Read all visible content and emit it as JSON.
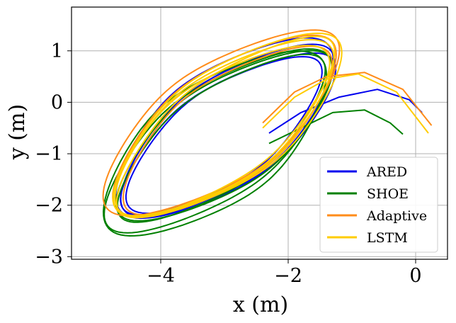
{
  "chart_data": {
    "type": "line",
    "title": "",
    "xlabel": "x (m)",
    "ylabel": "y (m)",
    "xlim": [
      -5.4,
      0.5
    ],
    "ylim": [
      -3.05,
      1.85
    ],
    "grid": true,
    "x_ticks": [
      {
        "value": -4,
        "label": "−4"
      },
      {
        "value": -2,
        "label": "−2"
      },
      {
        "value": 0,
        "label": "0"
      }
    ],
    "y_ticks": [
      {
        "value": 1,
        "label": "1"
      },
      {
        "value": 0,
        "label": "0"
      },
      {
        "value": -1,
        "label": "−1"
      },
      {
        "value": -2,
        "label": "−2"
      },
      {
        "value": -3,
        "label": "−3"
      }
    ],
    "legend_position": "lower-right",
    "series": [
      {
        "name": "ARED",
        "color": "#0000ee",
        "loops": [
          {
            "cx": -2.95,
            "cy": -0.55,
            "a": 2.25,
            "b": 0.95,
            "angle": 45
          },
          {
            "cx": -3.05,
            "cy": -0.65,
            "a": 2.1,
            "b": 0.85,
            "angle": 44
          },
          {
            "cx": -3.0,
            "cy": -0.5,
            "a": 2.3,
            "b": 1.05,
            "angle": 46
          },
          {
            "cx": -2.9,
            "cy": -0.6,
            "a": 2.15,
            "b": 0.9,
            "angle": 43
          }
        ],
        "tail": {
          "x": [
            -2.3,
            -1.8,
            -1.2,
            -0.6,
            -0.1,
            0.1
          ],
          "y": [
            -0.6,
            -0.2,
            0.1,
            0.25,
            0.05,
            -0.2
          ]
        }
      },
      {
        "name": "SHOE",
        "color": "#008000",
        "loops": [
          {
            "cx": -3.1,
            "cy": -0.75,
            "a": 2.4,
            "b": 1.0,
            "angle": 45
          },
          {
            "cx": -3.0,
            "cy": -0.65,
            "a": 2.25,
            "b": 0.95,
            "angle": 44
          },
          {
            "cx": -3.15,
            "cy": -0.8,
            "a": 2.35,
            "b": 1.1,
            "angle": 46
          },
          {
            "cx": -3.05,
            "cy": -0.7,
            "a": 2.2,
            "b": 0.88,
            "angle": 45
          }
        ],
        "tail": {
          "x": [
            -2.3,
            -1.8,
            -1.3,
            -0.8,
            -0.4,
            -0.2
          ],
          "y": [
            -0.8,
            -0.5,
            -0.2,
            -0.15,
            -0.4,
            -0.62
          ]
        }
      },
      {
        "name": "Adaptive",
        "color": "#ff8c1a",
        "loops": [
          {
            "cx": -3.0,
            "cy": -0.45,
            "a": 2.35,
            "b": 1.0,
            "angle": 45
          },
          {
            "cx": -2.95,
            "cy": -0.55,
            "a": 2.2,
            "b": 0.92,
            "angle": 45
          },
          {
            "cx": -3.05,
            "cy": -0.4,
            "a": 2.45,
            "b": 1.05,
            "angle": 44
          }
        ],
        "tail": {
          "x": [
            -2.4,
            -1.9,
            -1.4,
            -0.8,
            -0.2,
            0.25
          ],
          "y": [
            -0.4,
            0.2,
            0.5,
            0.58,
            0.25,
            -0.45
          ]
        }
      },
      {
        "name": "LSTM",
        "color": "#ffcc00",
        "loops": [
          {
            "cx": -3.0,
            "cy": -0.5,
            "a": 2.3,
            "b": 0.98,
            "angle": 45
          },
          {
            "cx": -2.95,
            "cy": -0.45,
            "a": 2.4,
            "b": 1.02,
            "angle": 45
          },
          {
            "cx": -3.05,
            "cy": -0.55,
            "a": 2.25,
            "b": 0.95,
            "angle": 44
          },
          {
            "cx": -2.98,
            "cy": -0.48,
            "a": 2.35,
            "b": 0.9,
            "angle": 46
          }
        ],
        "tail": {
          "x": [
            -2.4,
            -1.9,
            -1.4,
            -0.9,
            -0.3,
            0.2
          ],
          "y": [
            -0.5,
            0.1,
            0.45,
            0.55,
            0.2,
            -0.6
          ]
        }
      }
    ]
  }
}
